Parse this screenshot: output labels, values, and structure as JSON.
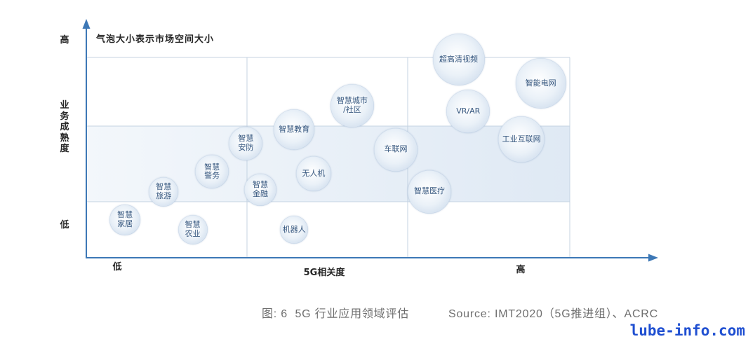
{
  "chart_data": {
    "type": "scatter",
    "marker": "bubble",
    "annotation": "气泡大小表示市场空间大小",
    "x_axis": {
      "title": "5G相关度",
      "low_label": "低",
      "high_label": "高"
    },
    "y_axis": {
      "title": "业务成熟度",
      "low_label": "低",
      "high_label": "高"
    },
    "xlim": [
      0,
      10
    ],
    "ylim": [
      0,
      10
    ],
    "grid": true,
    "points": [
      {
        "label_lines": [
          "超高清视频"
        ],
        "x": 7.7,
        "y": 9.9,
        "size": 100
      },
      {
        "label_lines": [
          "智能电网"
        ],
        "x": 9.4,
        "y": 8.7,
        "size": 95
      },
      {
        "label_lines": [
          "VR/AR"
        ],
        "x": 7.9,
        "y": 7.3,
        "size": 70
      },
      {
        "label_lines": [
          "工业互联网"
        ],
        "x": 9.0,
        "y": 5.9,
        "size": 80
      },
      {
        "label_lines": [
          "智慧城市",
          "/社区"
        ],
        "x": 5.5,
        "y": 7.6,
        "size": 70
      },
      {
        "label_lines": [
          "车联网"
        ],
        "x": 6.4,
        "y": 5.4,
        "size": 70
      },
      {
        "label_lines": [
          "智慧医疗"
        ],
        "x": 7.1,
        "y": 3.3,
        "size": 70
      },
      {
        "label_lines": [
          "智慧教育"
        ],
        "x": 4.3,
        "y": 6.4,
        "size": 61
      },
      {
        "label_lines": [
          "智慧",
          "安防"
        ],
        "x": 3.3,
        "y": 5.7,
        "size": 42
      },
      {
        "label_lines": [
          "无人机"
        ],
        "x": 4.7,
        "y": 4.2,
        "size": 46
      },
      {
        "label_lines": [
          "智慧",
          "警务"
        ],
        "x": 2.6,
        "y": 4.3,
        "size": 42
      },
      {
        "label_lines": [
          "智慧",
          "金融"
        ],
        "x": 3.6,
        "y": 3.4,
        "size": 39
      },
      {
        "label_lines": [
          "智慧",
          "旅游"
        ],
        "x": 1.6,
        "y": 3.3,
        "size": 32
      },
      {
        "label_lines": [
          "智慧",
          "家居"
        ],
        "x": 0.8,
        "y": 1.9,
        "size": 35
      },
      {
        "label_lines": [
          "智慧",
          "农业"
        ],
        "x": 2.2,
        "y": 1.4,
        "size": 32
      },
      {
        "label_lines": [
          "机器人"
        ],
        "x": 4.3,
        "y": 1.4,
        "size": 29
      }
    ]
  },
  "caption": {
    "figure": "图: 6  5G 行业应用领域评估",
    "source": "Source: IMT2020（5G推进组）、ACRC"
  },
  "watermark": "lube-info.com",
  "colors": {
    "axis": "#3d78b6",
    "grid": "#c4d3e2",
    "band_left": "#f3f7fb",
    "band_right": "#dfe9f4",
    "bubble_center": "#ffffff",
    "bubble_mid": "#eaf1f8",
    "bubble_edge": "#c3d4e8",
    "bubble_text": "#35567e",
    "axis_text": "#262626",
    "caption_text": "#6e6e6e",
    "watermark": "#1f4fd1"
  }
}
